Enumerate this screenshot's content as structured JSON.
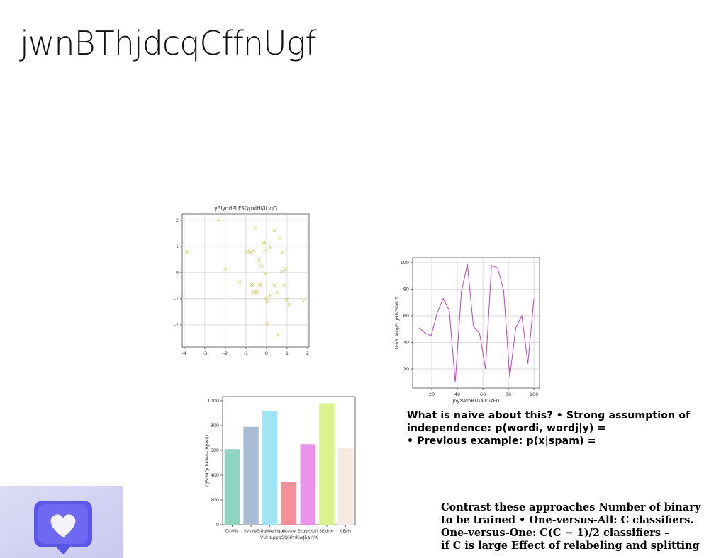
{
  "title": "jwnBThjdcqCffnUgf",
  "chart_data": [
    {
      "type": "scatter",
      "title": "yEiyqdPLFSQpxlHKlUqO",
      "color": "#bcbd22",
      "grid": true,
      "xlim": [
        -4.1,
        2.07
      ],
      "ylim": [
        -2.84,
        2.24
      ],
      "xticks": [
        -4,
        -3,
        -2,
        -1,
        0,
        1,
        2
      ],
      "yticks": [
        -2,
        -1,
        0,
        1,
        2
      ],
      "x": [
        -3.86,
        -2.31,
        -2.0,
        -1.31,
        -0.93,
        -0.79,
        -0.55,
        -0.69,
        -0.52,
        -0.38,
        -0.34,
        -0.24,
        -0.17,
        -0.07,
        -0.07,
        -0.03,
        0.03,
        0.03,
        0.17,
        0.21,
        0.38,
        0.38,
        0.52,
        0.55,
        0.66,
        0.76,
        0.76,
        0.86,
        0.93,
        0.97,
        1.1,
        1.79,
        -0.62,
        -0.72,
        -0.28,
        -0.48,
        -0.66,
        -0.1
      ],
      "y": [
        0.78,
        2.0,
        0.11,
        -0.38,
        0.81,
        0.78,
        1.7,
        -0.49,
        -0.76,
        0.46,
        -0.49,
        0.24,
        1.11,
        0.84,
        -0.05,
        -0.97,
        -1.11,
        -1.95,
        0.95,
        -0.86,
        1.62,
        -0.49,
        -0.76,
        -2.38,
        1.3,
        0.76,
        0.05,
        -0.49,
        0.14,
        -1.03,
        -1.22,
        -1.08,
        -0.76,
        -0.46,
        -0.46,
        -0.73,
        0.84,
        1.14
      ]
    },
    {
      "type": "line",
      "xlabel": "JoyzWmRTGAlkvKEU",
      "ylabel": "bmRtANgELgHBGNdnT",
      "grid": true,
      "xlim": [
        5,
        104.4
      ],
      "ylim": [
        5.6,
        103.7
      ],
      "xticks": [
        20,
        40,
        60,
        80,
        100
      ],
      "yticks": [
        20,
        40,
        60,
        80,
        100
      ],
      "x": [
        10,
        14.7,
        19.5,
        24.2,
        28.9,
        33.7,
        38.4,
        43.2,
        47.9,
        52.6,
        57.4,
        62.1,
        66.8,
        71.6,
        76.3,
        81.1,
        85.8,
        90.5,
        95.3,
        100
      ],
      "series": [
        {
          "color": "#c040c0",
          "values": [
            51,
            47,
            45,
            62,
            73,
            64,
            10,
            78,
            99,
            52,
            47,
            20,
            98,
            96,
            79,
            14,
            51,
            60,
            24,
            73
          ]
        }
      ]
    },
    {
      "type": "bar",
      "xlabel": "VUHLppqSQNhrKwJbatYK",
      "ylabel": "OjScMQuhKAzsuBJsKIjx",
      "grid": false,
      "ylim": [
        0,
        1034
      ],
      "yticks": [
        0,
        200,
        400,
        600,
        800,
        1000
      ],
      "categories": [
        "DcXNb",
        "eVvWX",
        "sErUqMAaYJgpR",
        "uXcOw",
        "EeqqKXuff",
        "SEjdnxr",
        "CEpiv"
      ],
      "values": [
        610,
        790,
        915,
        345,
        650,
        980,
        615
      ],
      "colors": [
        "#8fd3c0",
        "#a7bcd2",
        "#a0e4f8",
        "#f58f98",
        "#ea92ec",
        "#dcf28f",
        "#f6e9e0"
      ]
    }
  ],
  "texts": [
    {
      "lines": [
        "What is naive about this? • Strong assumption of",
        "independence: p(wordi, wordj|y) =",
        "• Previous example: p(x|spam) ="
      ]
    },
    {
      "lines": [
        "Contrast these approaches Number of binary",
        "to be trained • One-versus-All: C classifiers.",
        "One-versus-One: C(C − 1)/2 classifiers –",
        "if C is large Effect of relabeling and splitting"
      ]
    }
  ]
}
